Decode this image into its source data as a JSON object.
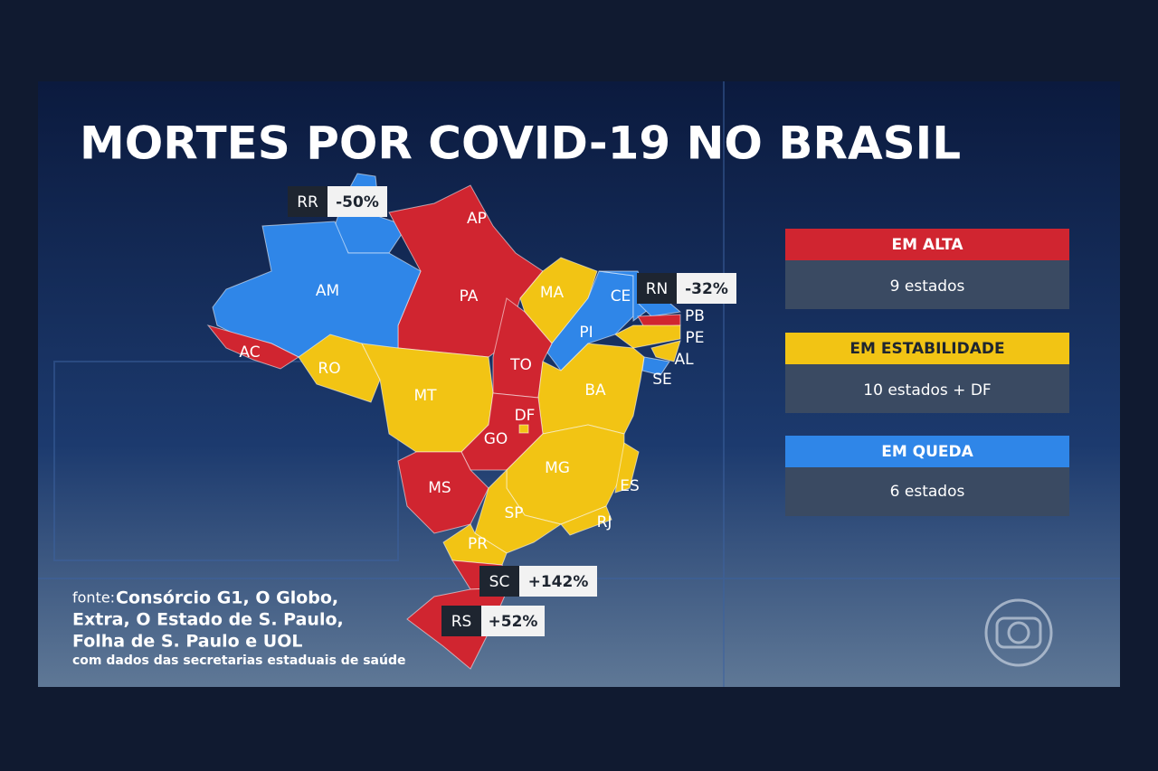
{
  "title": "MORTES POR COVID-19 NO BRASIL",
  "map": {
    "states": [
      "AP",
      "AM",
      "PA",
      "MA",
      "CE",
      "PB",
      "PE",
      "AL",
      "SE",
      "PI",
      "AC",
      "RO",
      "MT",
      "TO",
      "BA",
      "DF",
      "GO",
      "MG",
      "ES",
      "MS",
      "SP",
      "RJ",
      "PR"
    ]
  },
  "callouts": [
    {
      "state": "RR",
      "change": "-50%"
    },
    {
      "state": "RN",
      "change": "-32%"
    },
    {
      "state": "SC",
      "change": "+142%"
    },
    {
      "state": "RS",
      "change": "+52%"
    }
  ],
  "legend": [
    {
      "label": "EM ALTA",
      "count": "9 estados"
    },
    {
      "label": "EM ESTABILIDADE",
      "count": "10 estados + DF"
    },
    {
      "label": "EM QUEDA",
      "count": "6 estados"
    }
  ],
  "source": {
    "prefix": "fonte:",
    "lines": [
      "Consórcio G1, O Globo,",
      "Extra, O Estado de S. Paulo,",
      "Folha de S. Paulo e UOL"
    ],
    "note": "com dados das secretarias estaduais de saúde"
  }
}
